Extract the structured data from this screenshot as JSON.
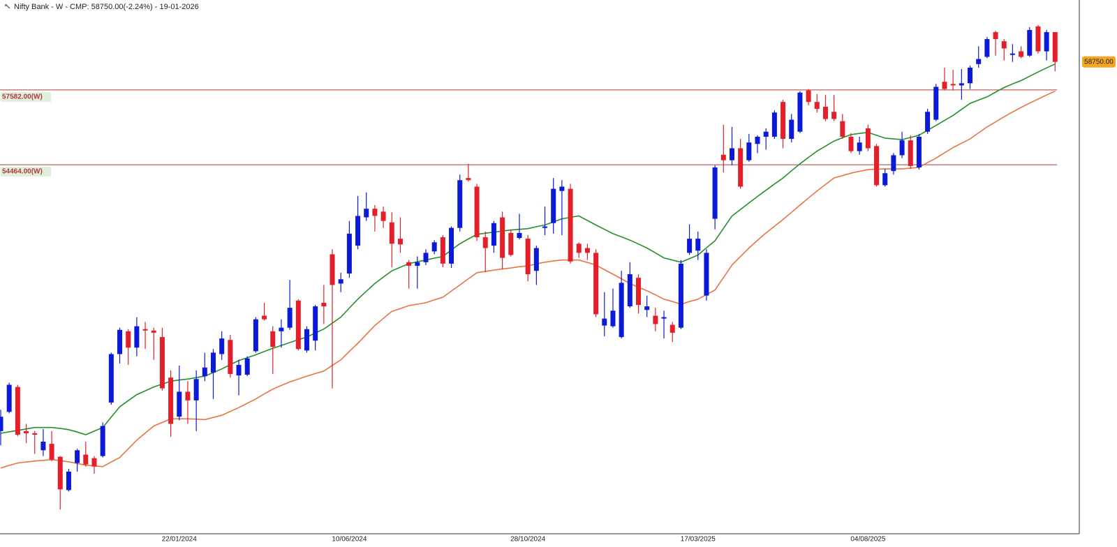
{
  "chart_data": {
    "type": "candlestick",
    "title": "Nifty Bank - W - CMP: 58750.00(-2.24%) - 19-01-2026",
    "categories": [
      null,
      null,
      null,
      null,
      null,
      null,
      null,
      null,
      null,
      null,
      null,
      null,
      null,
      null,
      null,
      null,
      null,
      null,
      null,
      null,
      null,
      "22/01/2024",
      null,
      null,
      null,
      null,
      null,
      null,
      null,
      null,
      null,
      null,
      null,
      null,
      null,
      null,
      null,
      null,
      null,
      null,
      null,
      "10/06/2024",
      null,
      null,
      null,
      null,
      null,
      null,
      null,
      null,
      null,
      null,
      null,
      null,
      null,
      null,
      null,
      null,
      null,
      null,
      null,
      null,
      "28/10/2024",
      null,
      null,
      null,
      null,
      null,
      null,
      null,
      null,
      null,
      null,
      null,
      null,
      null,
      null,
      null,
      null,
      null,
      null,
      null,
      "17/03/2025",
      null,
      null,
      null,
      null,
      null,
      null,
      null,
      null,
      null,
      null,
      null,
      null,
      null,
      null,
      null,
      null,
      null,
      null,
      null,
      "04/08/2025",
      null,
      null,
      null,
      null,
      null,
      null,
      null,
      null,
      null,
      null,
      null,
      null,
      null,
      null,
      null,
      null,
      null,
      null,
      null,
      null,
      null,
      null
    ],
    "open": [
      43360,
      44160,
      45200,
      43360,
      43270,
      42560,
      42830,
      42290,
      40900,
      42030,
      42380,
      42230,
      42320,
      44550,
      46570,
      47520,
      46840,
      47610,
      47550,
      47280,
      45590,
      43960,
      45000,
      44640,
      45650,
      45800,
      46570,
      47160,
      45680,
      45710,
      46690,
      48170,
      47520,
      47520,
      47670,
      48800,
      46720,
      47130,
      48710,
      50730,
      49510,
      49930,
      51090,
      52270,
      52630,
      52510,
      52060,
      51380,
      50400,
      50250,
      50400,
      50850,
      51440,
      50340,
      51830,
      53910,
      53550,
      51440,
      51090,
      52270,
      51620,
      51410,
      51380,
      50040,
      51830,
      52030,
      53370,
      53460,
      51170,
      50990,
      50790,
      47760,
      47730,
      47280,
      48560,
      49750,
      48410,
      48170,
      48050,
      47790,
      47670,
      50790,
      50880,
      49010,
      52210,
      54880,
      54650,
      55150,
      54650,
      55330,
      55630,
      55630,
      57080,
      55540,
      55840,
      57560,
      57080,
      56880,
      56670,
      56280,
      55630,
      55030,
      55980,
      55240,
      53610,
      54200,
      54860,
      55480,
      54350,
      55840,
      56340,
      57920,
      57830,
      57770,
      57860,
      58660,
      58960,
      59990,
      59610,
      59040,
      59190,
      59010,
      60230,
      59190,
      59990
    ],
    "high": [
      44250,
      45380,
      45290,
      43660,
      43360,
      43450,
      43360,
      42320,
      41790,
      42620,
      42920,
      42320,
      43720,
      46630,
      47670,
      47610,
      48110,
      47910,
      47670,
      47670,
      45890,
      46090,
      45440,
      45890,
      46630,
      46780,
      47520,
      47370,
      46330,
      46480,
      48110,
      48710,
      47730,
      48020,
      49660,
      48860,
      47730,
      48620,
      49450,
      50940,
      49960,
      52120,
      53160,
      53310,
      52780,
      52720,
      52480,
      52270,
      50490,
      50640,
      50940,
      51320,
      51530,
      51890,
      54050,
      54500,
      53670,
      51680,
      52120,
      52510,
      51770,
      52420,
      51530,
      51090,
      52720,
      53910,
      53820,
      53670,
      51230,
      51170,
      50940,
      49150,
      49300,
      50040,
      50400,
      49900,
      49010,
      48500,
      48380,
      47910,
      50490,
      51980,
      51680,
      50940,
      54440,
      56130,
      56040,
      55540,
      55750,
      55690,
      55980,
      56730,
      57170,
      56580,
      57530,
      57620,
      57410,
      57380,
      57380,
      56580,
      55780,
      55630,
      56130,
      55330,
      54290,
      54950,
      55840,
      55690,
      55750,
      56790,
      57830,
      58510,
      58420,
      58450,
      58600,
      59400,
      59790,
      60050,
      59700,
      59490,
      59400,
      60200,
      60290,
      60080,
      59990
    ],
    "low": [
      42770,
      44100,
      43150,
      42860,
      42410,
      42320,
      42110,
      40090,
      40840,
      41670,
      41880,
      41580,
      42260,
      44460,
      46180,
      46120,
      46480,
      46780,
      46330,
      45050,
      43120,
      43810,
      43660,
      43360,
      45440,
      44700,
      46330,
      45590,
      44850,
      45650,
      46630,
      47970,
      45740,
      46840,
      47580,
      46720,
      46630,
      46720,
      47820,
      45140,
      49150,
      49750,
      50940,
      52120,
      51680,
      51830,
      50190,
      50790,
      49300,
      49300,
      50280,
      50730,
      50190,
      50160,
      51680,
      53760,
      51290,
      49980,
      50790,
      50100,
      50640,
      51350,
      49600,
      49450,
      51530,
      51590,
      51530,
      50340,
      50580,
      50490,
      48110,
      47310,
      47670,
      47220,
      48500,
      48260,
      48110,
      47520,
      47220,
      47070,
      47610,
      50700,
      50490,
      48800,
      51770,
      54140,
      54440,
      53460,
      54590,
      54950,
      55090,
      55540,
      55150,
      55390,
      55780,
      56940,
      56640,
      56280,
      56280,
      55540,
      54950,
      54880,
      55030,
      53550,
      53550,
      54050,
      54740,
      54290,
      54260,
      55750,
      56280,
      57560,
      57560,
      57170,
      57620,
      58510,
      58900,
      59010,
      58810,
      58750,
      58900,
      58960,
      59100,
      58810,
      58360
    ],
    "close": [
      43960,
      45290,
      43210,
      43270,
      43210,
      42920,
      42170,
      40930,
      41670,
      42560,
      41970,
      41880,
      43570,
      46570,
      47580,
      46840,
      47730,
      47550,
      47460,
      45140,
      43660,
      45000,
      44640,
      45530,
      46010,
      46630,
      47220,
      45740,
      46120,
      46390,
      48020,
      48020,
      46870,
      47670,
      48500,
      46780,
      47610,
      48560,
      48560,
      49450,
      49690,
      51590,
      52330,
      52630,
      52330,
      52120,
      51170,
      51140,
      50250,
      50400,
      50790,
      51230,
      50340,
      51830,
      53820,
      53820,
      51440,
      50990,
      52030,
      50580,
      50700,
      51620,
      49900,
      50990,
      51890,
      53460,
      53550,
      50430,
      50790,
      50790,
      48230,
      48050,
      48380,
      49540,
      49900,
      48620,
      48560,
      47820,
      48110,
      47460,
      50340,
      51380,
      51380,
      50790,
      54350,
      54650,
      55150,
      53550,
      55390,
      55630,
      55840,
      56640,
      55540,
      56340,
      57470,
      57080,
      56790,
      56370,
      56370,
      55630,
      55030,
      55390,
      55150,
      53610,
      54110,
      54860,
      55480,
      54410,
      55630,
      56670,
      57710,
      57620,
      57770,
      57860,
      58510,
      58870,
      59700,
      59700,
      59310,
      59100,
      58960,
      60080,
      59190,
      59990,
      58750
    ],
    "up_color": "#0b1ad6",
    "down_color": "#e3202a",
    "lines": [
      {
        "color": "#23902a",
        "values": [
          43270,
          43330,
          43390,
          43450,
          43510,
          43510,
          43510,
          43470,
          43420,
          43320,
          43210,
          43360,
          43510,
          43940,
          44370,
          44630,
          44880,
          45040,
          45200,
          45320,
          45440,
          45490,
          45530,
          45590,
          45650,
          45800,
          45950,
          46130,
          46300,
          46420,
          46540,
          46680,
          46810,
          46930,
          47050,
          47170,
          47280,
          47450,
          47610,
          47860,
          48110,
          48490,
          48860,
          49190,
          49510,
          49780,
          50040,
          50190,
          50340,
          50420,
          50490,
          50570,
          50640,
          50910,
          51170,
          51370,
          51560,
          51610,
          51650,
          51700,
          51740,
          51770,
          51800,
          51880,
          51950,
          52080,
          52210,
          52270,
          52330,
          52140,
          51950,
          51770,
          51590,
          51460,
          51320,
          51160,
          50990,
          50790,
          50580,
          50490,
          50400,
          50550,
          50700,
          51000,
          51290,
          51810,
          52330,
          52600,
          52870,
          53140,
          53400,
          53660,
          53910,
          54210,
          54500,
          54770,
          55030,
          55240,
          55450,
          55590,
          55720,
          55770,
          55810,
          55690,
          55570,
          55540,
          55510,
          55600,
          55690,
          55900,
          56100,
          56310,
          56520,
          56770,
          57020,
          57160,
          57290,
          57490,
          57680,
          57830,
          57970,
          58150,
          58330,
          58500,
          58660
        ]
      },
      {
        "color": "#ea7440",
        "values": [
          41820,
          41930,
          42030,
          42070,
          42110,
          42140,
          42170,
          42130,
          42080,
          42010,
          41940,
          41910,
          41880,
          42070,
          42260,
          42620,
          42980,
          43280,
          43570,
          43720,
          43870,
          43870,
          43870,
          43860,
          43840,
          43930,
          44020,
          44180,
          44340,
          44520,
          44700,
          44910,
          45110,
          45260,
          45410,
          45530,
          45650,
          45760,
          45860,
          46100,
          46330,
          46680,
          47020,
          47390,
          47760,
          48060,
          48350,
          48470,
          48590,
          48650,
          48710,
          48830,
          48940,
          49200,
          49450,
          49710,
          49960,
          50020,
          50070,
          50120,
          50160,
          50210,
          50250,
          50330,
          50400,
          50450,
          50490,
          50490,
          50490,
          50390,
          50280,
          50090,
          49900,
          49710,
          49510,
          49360,
          49210,
          49040,
          48860,
          48760,
          48650,
          48760,
          48860,
          49050,
          49240,
          49760,
          50280,
          50640,
          50990,
          51310,
          51620,
          51900,
          52180,
          52480,
          52780,
          53080,
          53370,
          53640,
          53910,
          54010,
          54110,
          54190,
          54260,
          54280,
          54290,
          54290,
          54290,
          54320,
          54350,
          54550,
          54740,
          54960,
          55180,
          55360,
          55540,
          55790,
          56040,
          56250,
          56460,
          56660,
          56850,
          57030,
          57200,
          57370,
          57530
        ]
      }
    ],
    "levels": [
      {
        "value": 57582,
        "label": "57582.00(W)",
        "color": "#b23a3a"
      },
      {
        "value": 54464,
        "label": "54464.00(W)",
        "color": "#b23a3a"
      }
    ],
    "last_price": {
      "value": 58750,
      "label": "58750.00",
      "color": "#f6a623"
    },
    "ylim": [
      39110,
      61330
    ]
  }
}
